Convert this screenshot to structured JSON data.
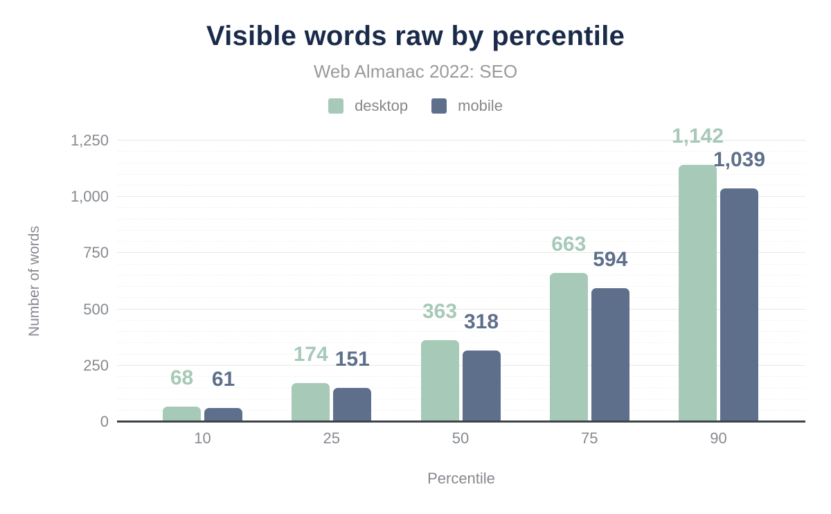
{
  "chart": {
    "title": "Visible words raw by percentile",
    "subtitle": "Web Almanac 2022: SEO"
  },
  "chart_data": {
    "type": "bar",
    "title": "Visible words raw by percentile",
    "subtitle": "Web Almanac 2022: SEO",
    "categories": [
      "10",
      "25",
      "50",
      "75",
      "90"
    ],
    "series": [
      {
        "name": "desktop",
        "color": "#a7c9b8",
        "values": [
          68,
          174,
          363,
          663,
          1142
        ],
        "labels": [
          "68",
          "174",
          "363",
          "663",
          "1,142"
        ]
      },
      {
        "name": "mobile",
        "color": "#5e6f8b",
        "values": [
          61,
          151,
          318,
          594,
          1039
        ],
        "labels": [
          "61",
          "151",
          "318",
          "594",
          "1,039"
        ]
      }
    ],
    "xlabel": "Percentile",
    "ylabel": "Number of words",
    "ylim": [
      0,
      1250
    ],
    "yticks": [
      0,
      250,
      500,
      750,
      1000,
      1250
    ],
    "ytick_labels": [
      "0",
      "250",
      "500",
      "750",
      "1,000",
      "1,250"
    ],
    "minor_grid_step": 50,
    "grid": true,
    "legend_position": "top",
    "axis_line_color": "#3d4348",
    "title_color": "#1a2b4a",
    "label_color": "#85898e"
  }
}
